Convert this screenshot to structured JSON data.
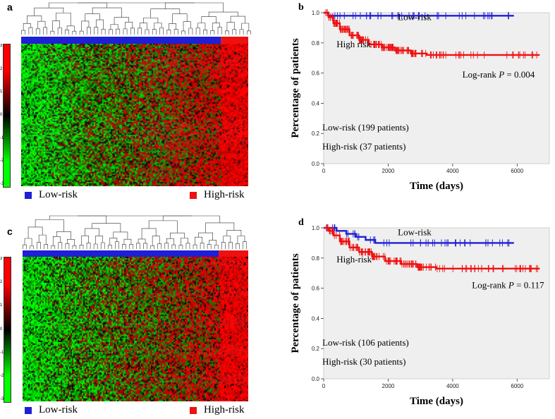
{
  "panels": {
    "a": {
      "letter": "a",
      "legend": [
        {
          "label": "Low-risk",
          "color": "#1f1fd6"
        },
        {
          "label": "High-risk",
          "color": "#ee1111"
        }
      ],
      "group_fraction_low": 0.88,
      "color_scale_ticks": [
        "3",
        "2",
        "1",
        "0",
        "-1",
        "-2",
        "-3"
      ]
    },
    "c": {
      "letter": "c",
      "legend": [
        {
          "label": "Low-risk",
          "color": "#1f1fd6"
        },
        {
          "label": "High-risk",
          "color": "#ee1111"
        }
      ],
      "group_fraction_low": 0.87,
      "color_scale_ticks": [
        "3",
        "2",
        "1",
        "0",
        "-1",
        "-2",
        "-3"
      ]
    }
  },
  "chart_data": [
    {
      "type": "line",
      "panel": "b",
      "letter": "b",
      "xlabel": "Time (days)",
      "ylabel": "Percentage of patients",
      "xlim": [
        0,
        7000
      ],
      "ylim": [
        0,
        1.0
      ],
      "xticks": [
        0,
        2000,
        4000,
        6000
      ],
      "yticks": [
        0.0,
        0.2,
        0.4,
        0.6,
        0.8,
        1.0
      ],
      "tick_labels_y": [
        "0.0",
        "0.2",
        "0.4",
        "0.6",
        "0.8",
        "1.0"
      ],
      "series": [
        {
          "name": "Low-risk",
          "color": "#1f1fd6",
          "x": [
            0,
            150,
            5900
          ],
          "y": [
            1.0,
            0.98,
            0.98
          ]
        },
        {
          "name": "High risk",
          "color": "#ee1111",
          "x": [
            0,
            150,
            300,
            500,
            800,
            1100,
            1400,
            1800,
            2200,
            2700,
            3200,
            3800,
            4500,
            5200,
            6700
          ],
          "y": [
            1.0,
            0.97,
            0.93,
            0.89,
            0.85,
            0.82,
            0.79,
            0.77,
            0.75,
            0.73,
            0.72,
            0.72,
            0.72,
            0.72,
            0.72
          ]
        }
      ],
      "annotations": [
        {
          "text": "Low-risk",
          "x": 2300,
          "y": 0.95
        },
        {
          "text": "High risk",
          "x": 400,
          "y": 0.77
        },
        {
          "text_prefix": "Log-rank ",
          "text_italic": "P",
          "text_suffix": " = 0.004",
          "x": 4300,
          "y": 0.57
        }
      ],
      "notes": [
        "Low-risk (199 patients)",
        "High-risk (37 patients)"
      ],
      "grid": false
    },
    {
      "type": "line",
      "panel": "d",
      "letter": "d",
      "xlabel": "Time (days)",
      "ylabel": "Percentage of patients",
      "xlim": [
        0,
        7000
      ],
      "ylim": [
        0,
        1.0
      ],
      "xticks": [
        0,
        2000,
        4000,
        6000
      ],
      "yticks": [
        0.0,
        0.2,
        0.4,
        0.6,
        0.8,
        1.0
      ],
      "tick_labels_y": [
        "0.0",
        "0.2",
        "0.4",
        "0.6",
        "0.8",
        "1.0"
      ],
      "series": [
        {
          "name": "Low-risk",
          "color": "#1f1fd6",
          "x": [
            0,
            400,
            700,
            1000,
            1300,
            1600,
            5900
          ],
          "y": [
            1.0,
            0.98,
            0.96,
            0.94,
            0.92,
            0.9,
            0.9
          ]
        },
        {
          "name": "High-risk",
          "color": "#ee1111",
          "x": [
            0,
            150,
            300,
            500,
            800,
            1100,
            1500,
            1900,
            2400,
            2900,
            3500,
            4200,
            5000,
            6700
          ],
          "y": [
            1.0,
            0.98,
            0.95,
            0.91,
            0.87,
            0.84,
            0.81,
            0.78,
            0.76,
            0.74,
            0.73,
            0.73,
            0.73,
            0.73
          ]
        }
      ],
      "annotations": [
        {
          "text": "Low-risk",
          "x": 2300,
          "y": 0.95
        },
        {
          "text": "High-risk",
          "x": 400,
          "y": 0.77
        },
        {
          "text_prefix": "Log-rank ",
          "text_italic": "P",
          "text_suffix": " = 0.117",
          "x": 4600,
          "y": 0.6
        }
      ],
      "notes": [
        "Low-risk (106 patients)",
        "High-risk (30 patients)"
      ],
      "grid": false
    }
  ]
}
